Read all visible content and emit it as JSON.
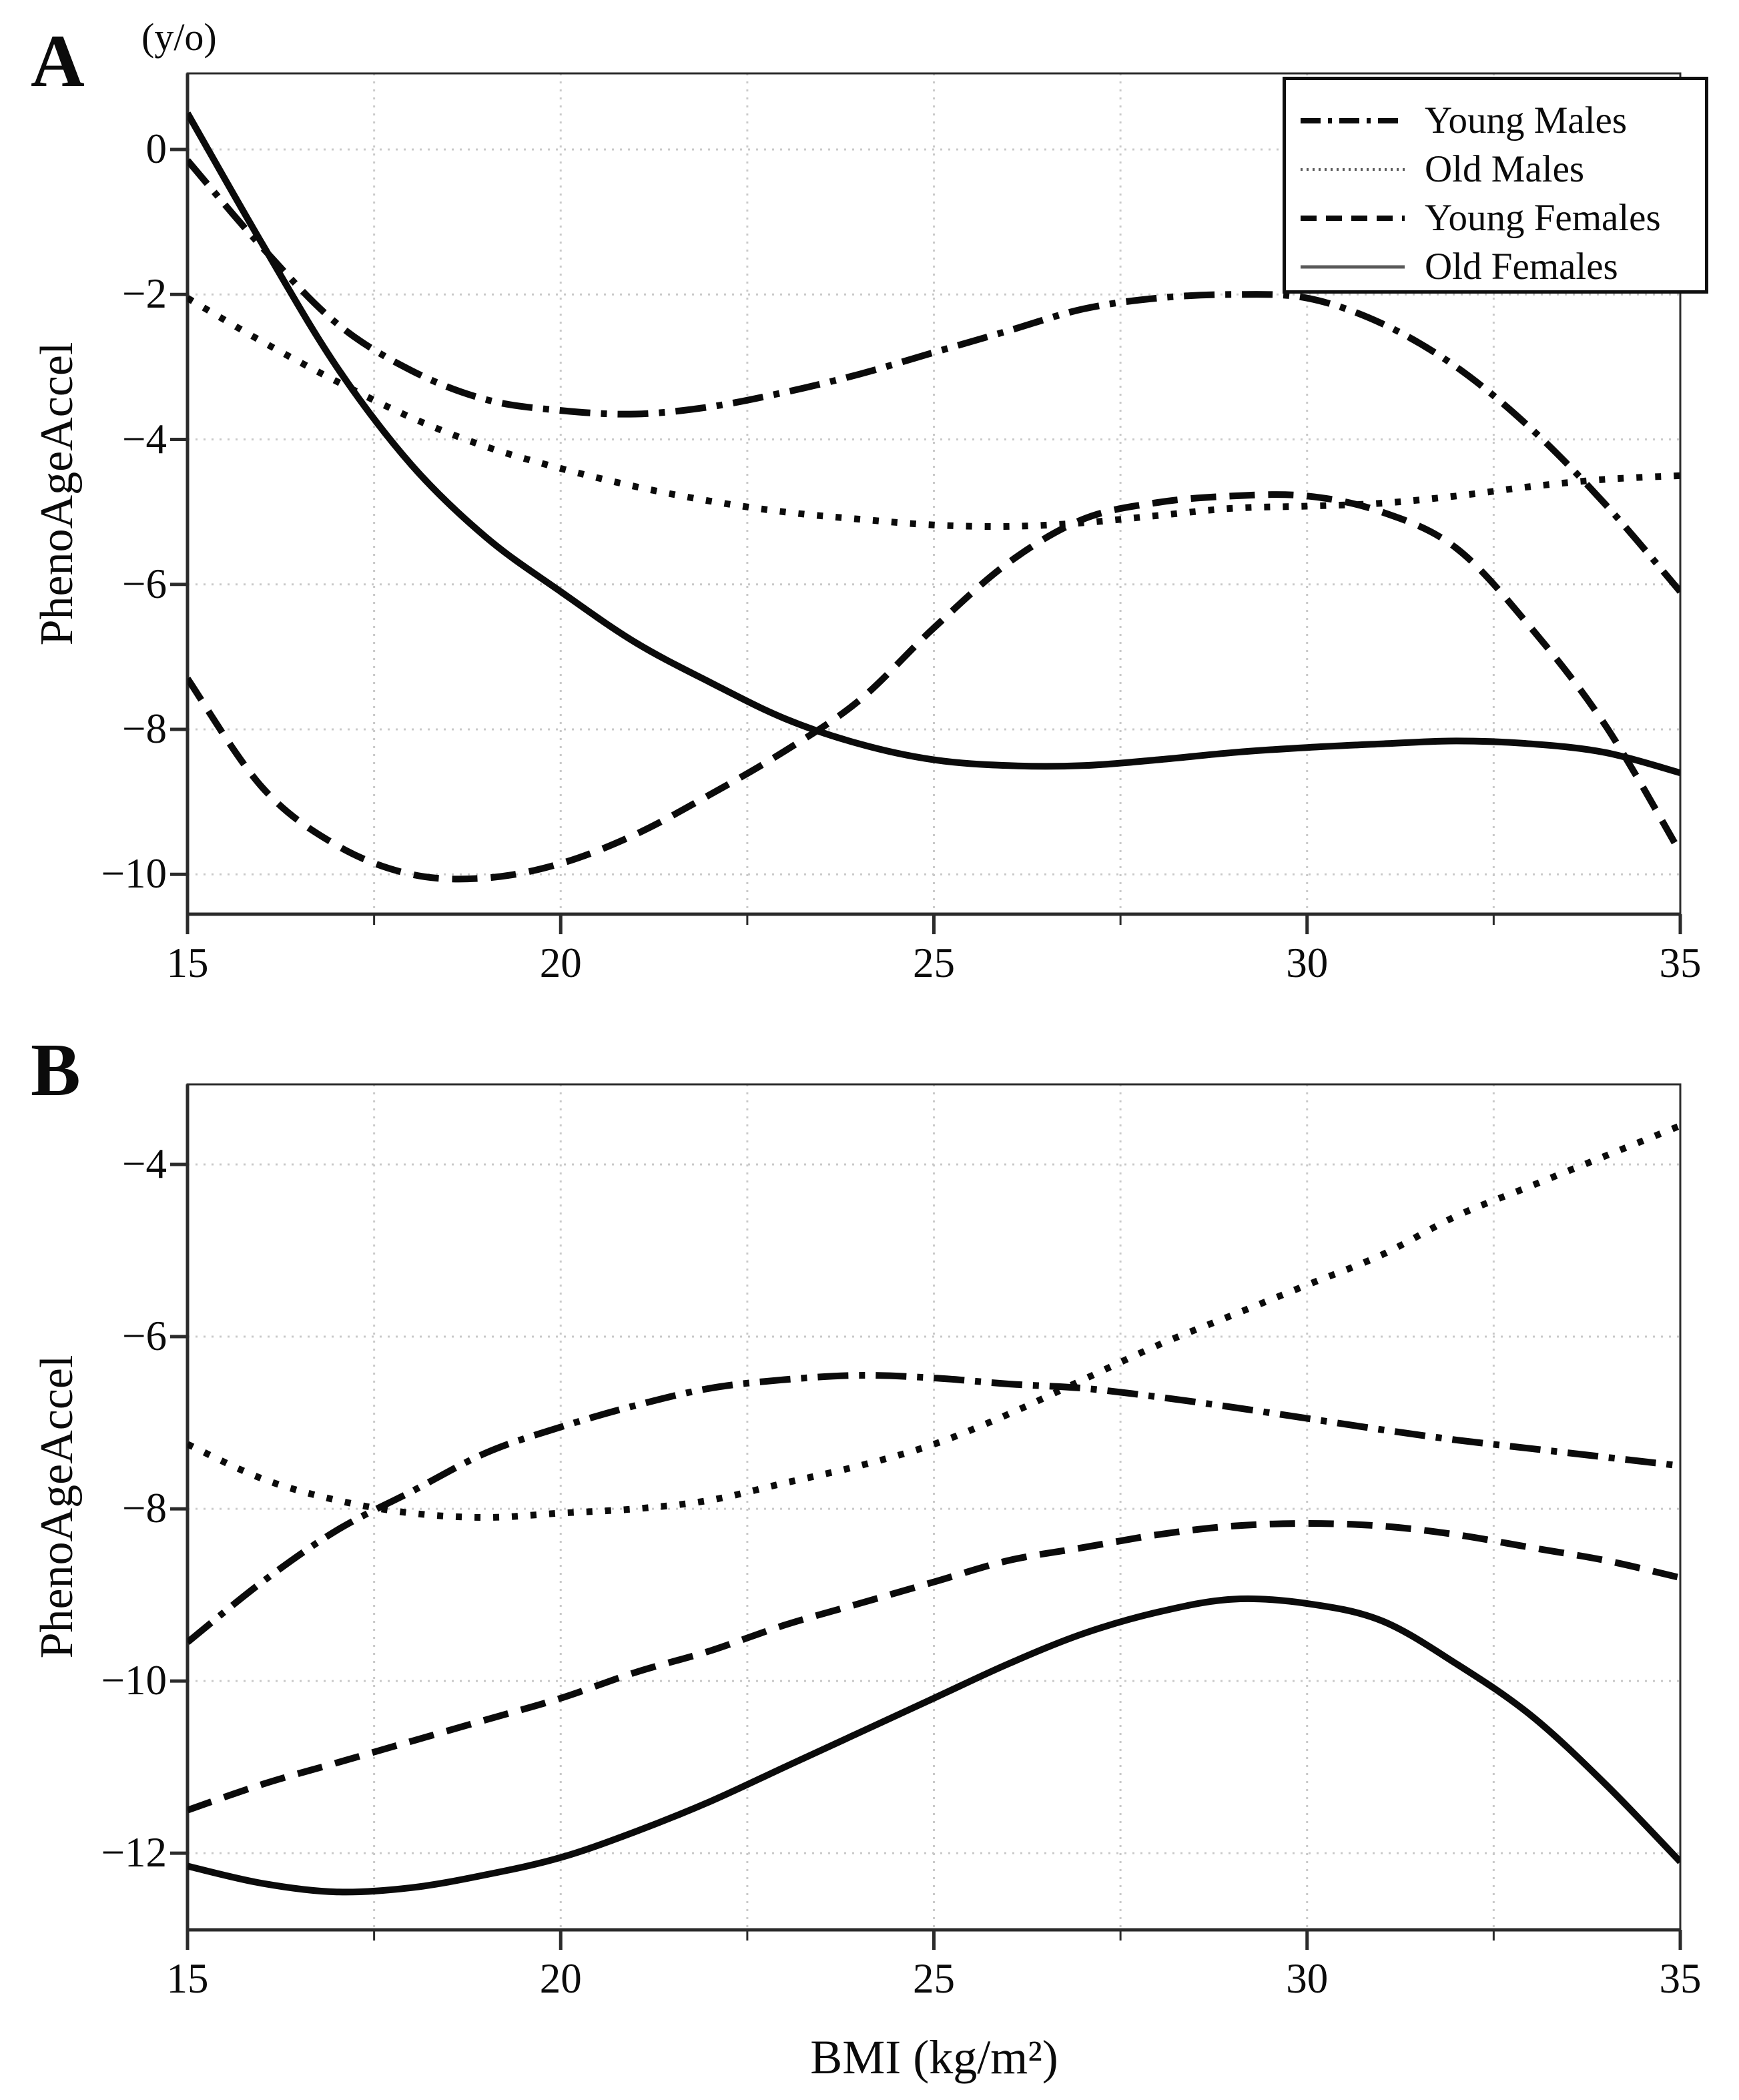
{
  "figure": {
    "panel_a_label": "A",
    "panel_b_label": "B",
    "y_unit_label": "(y/o)",
    "y_axis_title": "PhenoAgeAccel",
    "x_axis_title": "BMI (kg/m²)"
  },
  "legend": {
    "position": "top-right-of-panel-A",
    "items": [
      {
        "label": "Young Males",
        "style": "dashdot"
      },
      {
        "label": "Old Males",
        "style": "finedot"
      },
      {
        "label": "Young Females",
        "style": "dashed"
      },
      {
        "label": "Old Females",
        "style": "thinsolid"
      }
    ]
  },
  "chart_data": [
    {
      "type": "line",
      "panel": "A",
      "title": "",
      "xlabel": "BMI (kg/m²)",
      "ylabel": "PhenoAgeAccel",
      "xlim": [
        15,
        35
      ],
      "ylim": [
        -10.55,
        1.05
      ],
      "x_major_ticks": [
        15,
        20,
        25,
        30,
        35
      ],
      "x_minor_ticks": [
        17.5,
        22.5,
        27.5,
        32.5
      ],
      "x_gridlines": [
        17.5,
        20,
        22.5,
        25,
        27.5,
        30,
        32.5
      ],
      "y_ticks": [
        0,
        -2,
        -4,
        -6,
        -8,
        -10
      ],
      "grid": "dotted-light",
      "x": [
        15,
        16,
        17,
        18,
        19,
        20,
        21,
        22,
        23,
        24,
        25,
        26,
        27,
        28,
        29,
        30,
        31,
        32,
        33,
        34,
        35
      ],
      "series": [
        {
          "name": "Young Males",
          "style": "dashdot",
          "values": [
            -0.15,
            -1.35,
            -2.4,
            -3.05,
            -3.45,
            -3.6,
            -3.65,
            -3.55,
            -3.35,
            -3.1,
            -2.8,
            -2.5,
            -2.2,
            -2.05,
            -2.0,
            -2.05,
            -2.4,
            -3.0,
            -3.85,
            -4.9,
            -6.1
          ]
        },
        {
          "name": "Old Males",
          "style": "dotted",
          "values": [
            -2.05,
            -2.65,
            -3.2,
            -3.7,
            -4.1,
            -4.4,
            -4.65,
            -4.85,
            -5.0,
            -5.1,
            -5.18,
            -5.2,
            -5.15,
            -5.05,
            -4.95,
            -4.92,
            -4.88,
            -4.78,
            -4.65,
            -4.55,
            -4.5
          ]
        },
        {
          "name": "Young Females",
          "style": "dashed",
          "values": [
            -7.3,
            -8.8,
            -9.6,
            -10.0,
            -10.05,
            -9.85,
            -9.45,
            -8.9,
            -8.3,
            -7.6,
            -6.6,
            -5.7,
            -5.1,
            -4.87,
            -4.78,
            -4.78,
            -5.0,
            -5.5,
            -6.6,
            -7.95,
            -9.7
          ]
        },
        {
          "name": "Old Females",
          "style": "solid",
          "values": [
            0.5,
            -1.3,
            -3.0,
            -4.35,
            -5.35,
            -6.1,
            -6.8,
            -7.35,
            -7.85,
            -8.2,
            -8.42,
            -8.5,
            -8.5,
            -8.42,
            -8.32,
            -8.25,
            -8.2,
            -8.16,
            -8.2,
            -8.32,
            -8.6
          ]
        }
      ]
    },
    {
      "type": "line",
      "panel": "B",
      "title": "",
      "xlabel": "BMI (kg/m²)",
      "ylabel": "PhenoAgeAccel",
      "xlim": [
        15,
        35
      ],
      "ylim": [
        -12.89,
        -3.07
      ],
      "x_major_ticks": [
        15,
        20,
        25,
        30,
        35
      ],
      "x_minor_ticks": [
        17.5,
        22.5,
        27.5,
        32.5
      ],
      "x_gridlines": [
        17.5,
        20,
        22.5,
        25,
        27.5,
        30,
        32.5
      ],
      "y_ticks": [
        -4,
        -6,
        -8,
        -10,
        -12
      ],
      "grid": "dotted-light",
      "x": [
        15,
        16,
        17,
        18,
        19,
        20,
        21,
        22,
        23,
        24,
        25,
        26,
        27,
        28,
        29,
        30,
        31,
        32,
        33,
        34,
        35
      ],
      "series": [
        {
          "name": "Young Males",
          "style": "dashdot",
          "values": [
            -9.55,
            -8.85,
            -8.25,
            -7.8,
            -7.35,
            -7.05,
            -6.8,
            -6.6,
            -6.5,
            -6.45,
            -6.48,
            -6.55,
            -6.6,
            -6.7,
            -6.82,
            -6.95,
            -7.08,
            -7.2,
            -7.3,
            -7.4,
            -7.5
          ]
        },
        {
          "name": "Old Males",
          "style": "dotted",
          "values": [
            -7.25,
            -7.65,
            -7.9,
            -8.05,
            -8.1,
            -8.05,
            -8.0,
            -7.9,
            -7.7,
            -7.5,
            -7.25,
            -6.9,
            -6.5,
            -6.1,
            -5.75,
            -5.4,
            -5.05,
            -4.6,
            -4.25,
            -3.9,
            -3.55
          ]
        },
        {
          "name": "Young Females",
          "style": "dashed",
          "values": [
            -11.5,
            -11.2,
            -10.95,
            -10.7,
            -10.45,
            -10.2,
            -9.9,
            -9.65,
            -9.35,
            -9.1,
            -8.85,
            -8.6,
            -8.45,
            -8.3,
            -8.2,
            -8.17,
            -8.2,
            -8.3,
            -8.45,
            -8.6,
            -8.8
          ]
        },
        {
          "name": "Old Females",
          "style": "solid",
          "values": [
            -12.15,
            -12.35,
            -12.45,
            -12.4,
            -12.25,
            -12.05,
            -11.75,
            -11.4,
            -11.0,
            -10.6,
            -10.2,
            -9.8,
            -9.45,
            -9.2,
            -9.05,
            -9.1,
            -9.3,
            -9.8,
            -10.4,
            -11.2,
            -12.1
          ]
        }
      ]
    }
  ],
  "colors": {
    "curve": "#0b0b0b",
    "axis": "#2b2b2b",
    "gridline": "#c9c9c9",
    "legend_thin_line": "#5a5a5a"
  }
}
